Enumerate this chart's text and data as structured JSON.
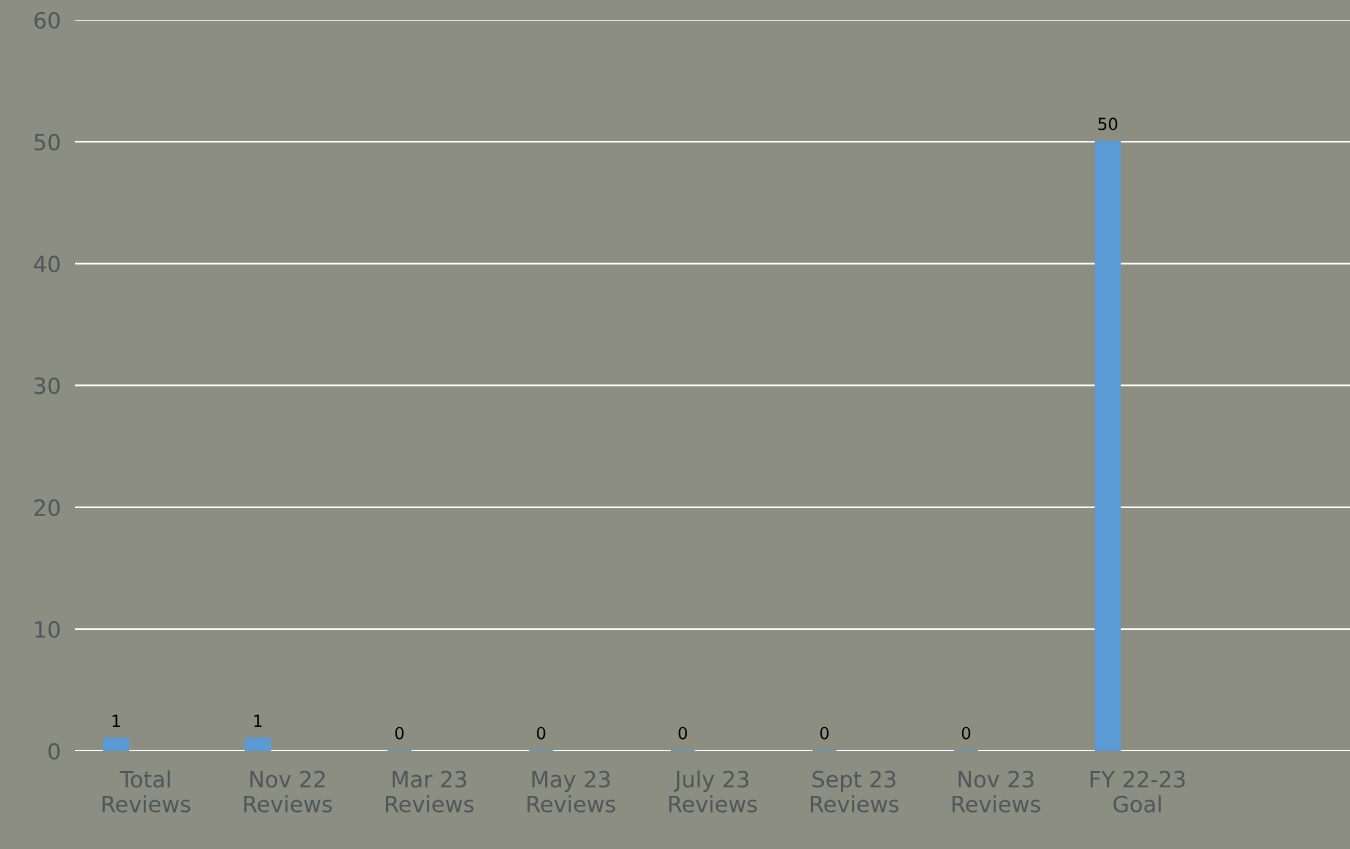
{
  "chart_data": {
    "type": "bar",
    "categories": [
      "Total\nReviews",
      "Nov 22\nReviews",
      "Mar 23\nReviews",
      "May 23\nReviews",
      "July 23\nReviews",
      "Sept 23\nReviews",
      "Nov 23\nReviews",
      "FY 22-23\nGoal",
      null
    ],
    "values": [
      1,
      1,
      0,
      0,
      0,
      0,
      0,
      50,
      null
    ],
    "color": "#5b9bd5",
    "ylim": [
      0,
      60
    ],
    "yticks": [
      0,
      10,
      20,
      30,
      40,
      50,
      60
    ],
    "grid": "y",
    "data_labels": true
  }
}
